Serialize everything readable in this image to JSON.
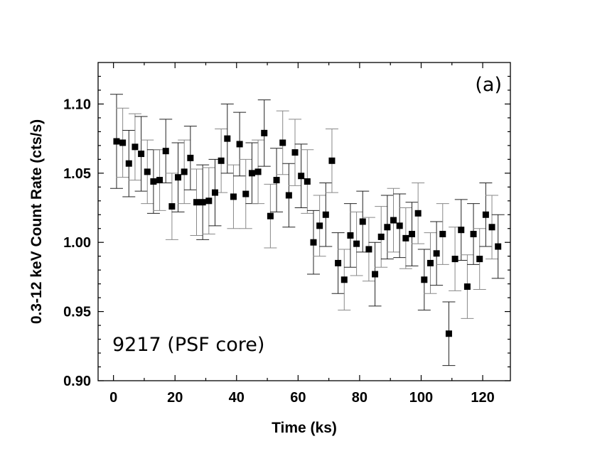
{
  "chart_data": {
    "type": "scatter",
    "title": "",
    "xlabel": "Time (ks)",
    "ylabel": "0.3-12 keV Count Rate (cts/s)",
    "xlim": [
      -5,
      129
    ],
    "ylim": [
      0.9,
      1.13
    ],
    "xticks": [
      "0",
      "20",
      "40",
      "60",
      "80",
      "100",
      "120"
    ],
    "yticks": [
      "0.90",
      "0.95",
      "1.00",
      "1.05",
      "1.10"
    ],
    "panel_label": "(a)",
    "annotation": "9217 (PSF core)",
    "error_bars": true,
    "series": [
      {
        "name": "9217 (PSF core)",
        "marker": "filled-square",
        "x": [
          1,
          3,
          5,
          7,
          9,
          11,
          13,
          15,
          17,
          19,
          21,
          23,
          25,
          27,
          29,
          31,
          33,
          35,
          37,
          39,
          41,
          43,
          45,
          47,
          49,
          51,
          53,
          55,
          57,
          59,
          61,
          63,
          65,
          67,
          69,
          71,
          73,
          75,
          77,
          79,
          81,
          83,
          85,
          87,
          89,
          91,
          93,
          95,
          97,
          99,
          101,
          103,
          105,
          107,
          109,
          111,
          113,
          115,
          117,
          119,
          121,
          123,
          125
        ],
        "y": [
          1.073,
          1.072,
          1.057,
          1.069,
          1.064,
          1.051,
          1.044,
          1.045,
          1.066,
          1.026,
          1.047,
          1.051,
          1.061,
          1.029,
          1.029,
          1.03,
          1.036,
          1.059,
          1.075,
          1.033,
          1.071,
          1.035,
          1.05,
          1.051,
          1.079,
          1.019,
          1.045,
          1.072,
          1.034,
          1.065,
          1.048,
          1.044,
          1.0,
          1.012,
          1.02,
          1.059,
          0.985,
          0.973,
          1.005,
          0.999,
          1.015,
          0.995,
          0.977,
          1.004,
          1.011,
          1.016,
          1.012,
          1.003,
          1.006,
          1.021,
          0.973,
          0.985,
          0.992,
          1.006,
          0.934,
          0.988,
          1.009,
          0.968,
          1.006,
          0.988,
          1.02,
          1.011,
          0.997
        ],
        "err": [
          0.034,
          0.025,
          0.024,
          0.024,
          0.027,
          0.023,
          0.023,
          0.022,
          0.023,
          0.024,
          0.025,
          0.023,
          0.023,
          0.024,
          0.027,
          0.024,
          0.024,
          0.023,
          0.025,
          0.023,
          0.023,
          0.025,
          0.022,
          0.023,
          0.024,
          0.023,
          0.023,
          0.023,
          0.023,
          0.024,
          0.023,
          0.023,
          0.023,
          0.022,
          0.023,
          0.023,
          0.022,
          0.022,
          0.023,
          0.023,
          0.022,
          0.023,
          0.023,
          0.022,
          0.023,
          0.023,
          0.023,
          0.022,
          0.023,
          0.022,
          0.022,
          0.022,
          0.023,
          0.022,
          0.023,
          0.023,
          0.022,
          0.023,
          0.022,
          0.022,
          0.023,
          0.023,
          0.023
        ]
      }
    ]
  }
}
